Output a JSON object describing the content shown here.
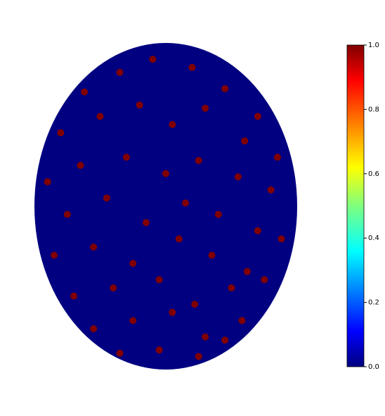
{
  "chart_data": {
    "type": "scatter",
    "colormap": "jet",
    "background_value": 0,
    "x": [
      -0.62,
      -0.35,
      -0.1,
      0.2,
      0.45,
      0.7,
      -0.8,
      -0.5,
      -0.2,
      0.05,
      0.3,
      0.6,
      0.85,
      -0.9,
      -0.65,
      -0.3,
      0.0,
      0.25,
      0.55,
      0.8,
      -0.75,
      -0.45,
      -0.15,
      0.15,
      0.4,
      0.7,
      -0.85,
      -0.55,
      -0.25,
      0.1,
      0.35,
      0.62,
      0.88,
      -0.7,
      -0.4,
      -0.05,
      0.22,
      0.5,
      0.75,
      -0.55,
      -0.25,
      0.05,
      0.3,
      0.58,
      -0.35,
      -0.05,
      0.25,
      0.45
    ],
    "y": [
      0.7,
      0.82,
      0.9,
      0.85,
      0.72,
      0.55,
      0.45,
      0.55,
      0.62,
      0.5,
      0.6,
      0.4,
      0.3,
      0.15,
      0.25,
      0.3,
      0.2,
      0.28,
      0.18,
      0.1,
      -0.05,
      0.05,
      -0.1,
      0.02,
      -0.05,
      -0.15,
      -0.3,
      -0.25,
      -0.35,
      -0.2,
      -0.3,
      -0.4,
      -0.2,
      -0.55,
      -0.5,
      -0.45,
      -0.6,
      -0.5,
      -0.45,
      -0.75,
      -0.7,
      -0.65,
      -0.8,
      -0.7,
      -0.9,
      -0.88,
      -0.92,
      -0.82
    ],
    "values": [
      1,
      1,
      1,
      1,
      1,
      1,
      1,
      1,
      1,
      1,
      1,
      1,
      1,
      1,
      1,
      1,
      1,
      1,
      1,
      1,
      1,
      1,
      1,
      1,
      1,
      1,
      1,
      1,
      1,
      1,
      1,
      1,
      1,
      1,
      1,
      1,
      1,
      1,
      1,
      1,
      1,
      1,
      1,
      1,
      1,
      1,
      1,
      1
    ],
    "xlim": [
      -1,
      1
    ],
    "ylim": [
      -1,
      1
    ],
    "clim": [
      0,
      1
    ],
    "cticks": [
      {
        "value": 0,
        "label": "0.0"
      },
      0.2,
      0.4,
      0.6,
      0.8,
      {
        "value": 1,
        "label": "1.0"
      }
    ]
  }
}
